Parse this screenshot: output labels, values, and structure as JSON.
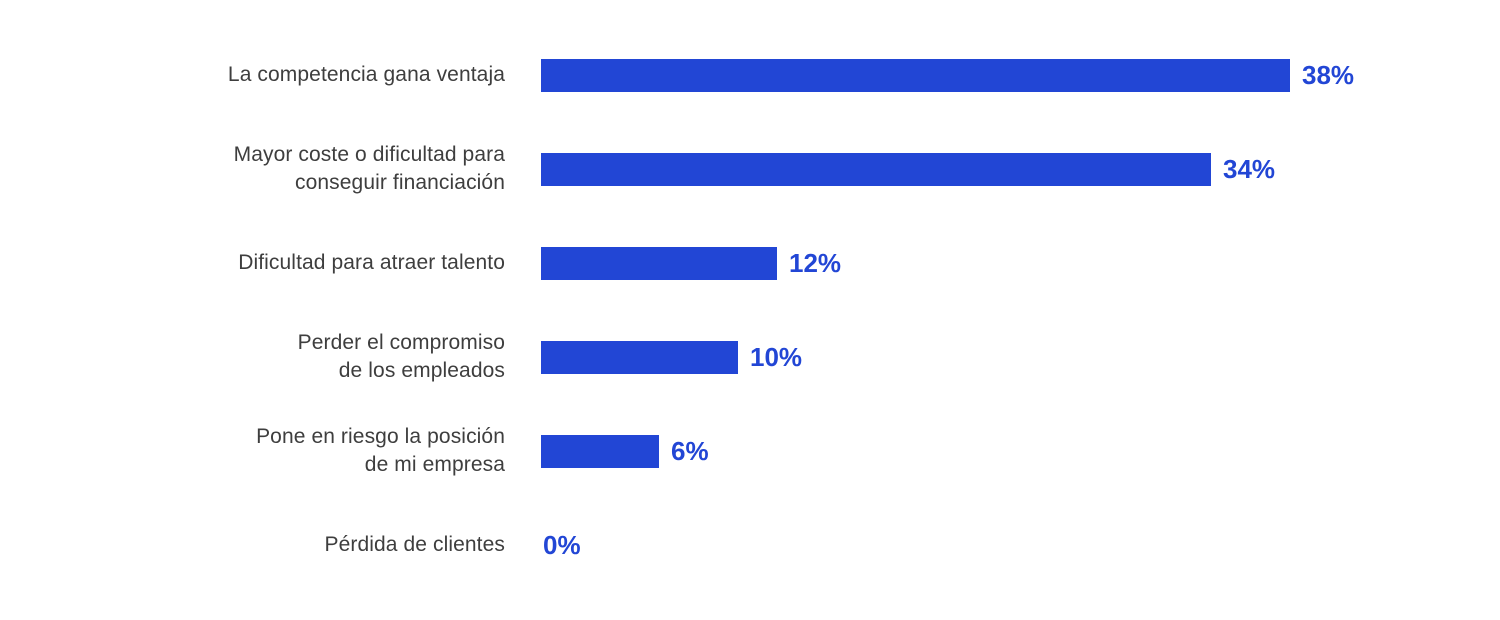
{
  "chart_data": {
    "type": "bar",
    "orientation": "horizontal",
    "title": "",
    "xlabel": "",
    "ylabel": "",
    "xlim": [
      0,
      40
    ],
    "grid": false,
    "legend": false,
    "categories": [
      "La competencia gana ventaja",
      "Mayor coste o dificultad para conseguir financiación",
      "Dificultad para atraer talento",
      "Perder el compromiso de los empleados",
      "Pone en riesgo la posición de mi empresa",
      "Pérdida de clientes"
    ],
    "category_lines": [
      [
        "La competencia gana ventaja"
      ],
      [
        "Mayor coste o dificultad para",
        "conseguir financiación"
      ],
      [
        "Dificultad para atraer talento"
      ],
      [
        "Perder el compromiso",
        "de los empleados"
      ],
      [
        "Pone en riesgo la posición",
        "de mi empresa"
      ],
      [
        "Pérdida de clientes"
      ]
    ],
    "values": [
      38,
      34,
      12,
      10,
      6,
      0
    ],
    "value_labels": [
      "38%",
      "34%",
      "12%",
      "10%",
      "6%",
      "0%"
    ],
    "value_suffix": "%",
    "colors": {
      "bar": "#2246d5",
      "value_text": "#2246d5",
      "category_text": "#3e3e3e",
      "background": "#ffffff"
    }
  }
}
